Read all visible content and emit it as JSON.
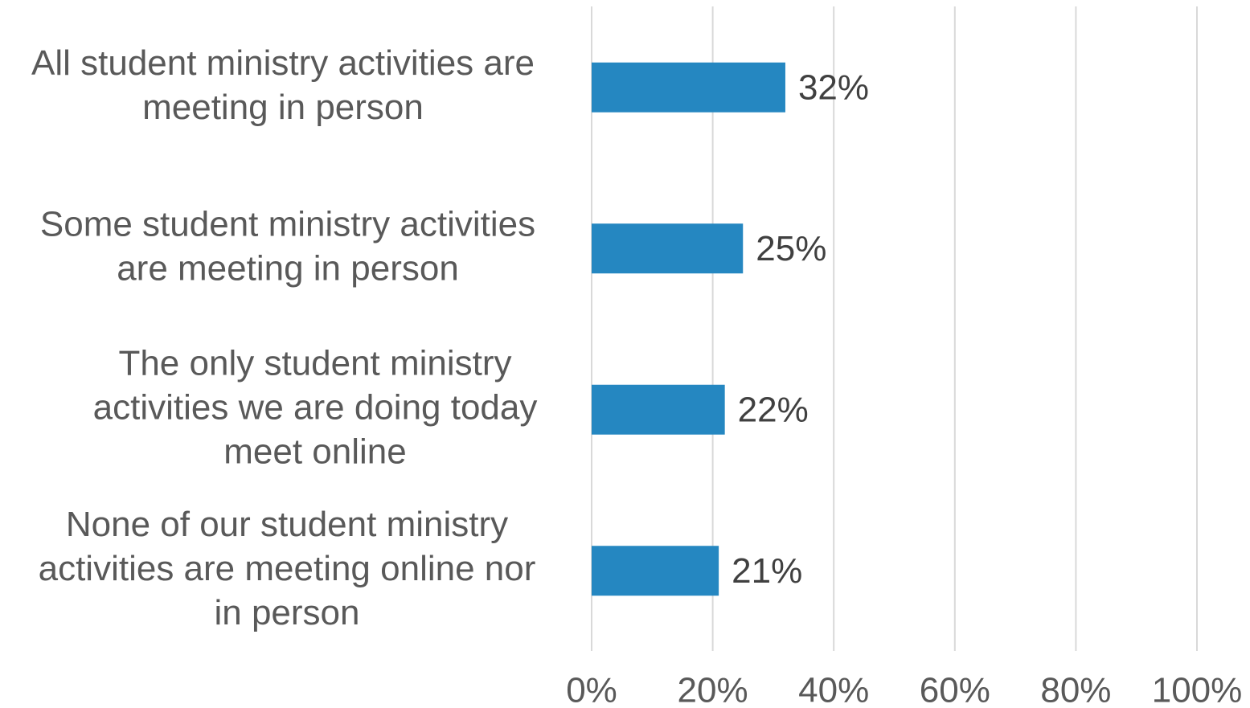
{
  "chart_data": {
    "type": "bar",
    "orientation": "horizontal",
    "categories": [
      [
        "All student ministry activities are",
        "meeting in person"
      ],
      [
        "Some student ministry activities",
        "are meeting in person"
      ],
      [
        "The only student ministry",
        "activities we are doing today",
        "meet online"
      ],
      [
        "None of our student ministry",
        "activities are meeting online nor",
        "in person"
      ]
    ],
    "values": [
      32,
      25,
      22,
      21
    ],
    "value_labels": [
      "32%",
      "25%",
      "22%",
      "21%"
    ],
    "color": "#2587c1",
    "xlim": [
      0,
      100
    ],
    "xticks": [
      {
        "value": 0,
        "label": "0%"
      },
      {
        "value": 20,
        "label": "20%"
      },
      {
        "value": 40,
        "label": "40%"
      },
      {
        "value": 60,
        "label": "60%"
      },
      {
        "value": 80,
        "label": "80%"
      },
      {
        "value": 100,
        "label": "100%"
      }
    ],
    "grid": true
  }
}
